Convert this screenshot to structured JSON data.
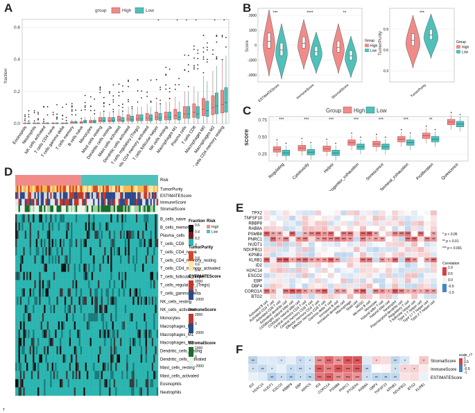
{
  "colors": {
    "high": "#e8797b",
    "low": "#36b3ad",
    "high_fill": "#f08b89",
    "low_fill": "#4fc1ba",
    "grid": "#e6e6e6"
  },
  "panel_letters": [
    "A",
    "B",
    "C",
    "D",
    "E",
    "F"
  ],
  "panelA": {
    "legend_title": "group",
    "legend_items": [
      "High",
      "Low"
    ],
    "ylabel": "fraction",
    "chart_data": {
      "type": "box",
      "ylim": [
        0,
        0.65
      ],
      "yticks": [
        "0.0",
        "0.2",
        "0.4",
        "0.6"
      ],
      "categories": [
        "Eosinophils",
        "Neutrophils",
        "NK cells activated",
        "T cells CD4 naive",
        "T cells gamma delta",
        "T cells memory",
        "B cells naive",
        "Monocytes",
        "Mast cells resting",
        "Dendritic cells resting",
        "Mast cells activated",
        "Dendritic cells activated",
        "T cells regulatory (Tregs)",
        "T cells CD4 memory activated",
        "T cells follicular helper",
        "NK cells resting",
        "Macrophages M1",
        "Plasma cells",
        "T cells CD8",
        "Macrophages M0",
        "Macrophages M2",
        "T cells CD4 memory resting"
      ],
      "series": [
        {
          "name": "High",
          "medians": [
            0,
            0,
            0,
            0,
            0,
            0.005,
            0.005,
            0.01,
            0.02,
            0.02,
            0.025,
            0.03,
            0.03,
            0.035,
            0.04,
            0.04,
            0.05,
            0.06,
            0.07,
            0.09,
            0.1,
            0.12
          ]
        },
        {
          "name": "Low",
          "medians": [
            0,
            0,
            0,
            0,
            0,
            0.005,
            0.01,
            0.01,
            0.02,
            0.02,
            0.02,
            0.025,
            0.03,
            0.03,
            0.035,
            0.04,
            0.04,
            0.06,
            0.06,
            0.08,
            0.11,
            0.13
          ]
        }
      ],
      "sig_labels": [
        "*",
        "*",
        "*",
        "*",
        "*",
        "*"
      ]
    }
  },
  "panelB": {
    "legend_title": "Group",
    "legend_items": [
      "High",
      "Low"
    ],
    "left_ylabel": "Score",
    "right_ylabel": "TumorPurity",
    "left": {
      "categories": [
        "ESTIMATEScore",
        "ImmuneScore",
        "StromalScore"
      ],
      "sig": [
        "***",
        "****",
        "**"
      ],
      "yticks": [
        "2000",
        "1000",
        "0",
        "-1000",
        "-2000"
      ]
    },
    "right": {
      "categories": [
        "TumorPurity"
      ],
      "sig": [
        "***"
      ],
      "yticks": [
        "0.9",
        "0.6",
        "0.3"
      ]
    }
  },
  "panelC": {
    "legend_title": "Group",
    "legend_items": [
      "High",
      "Low"
    ],
    "ylabel": "score",
    "chart_data": {
      "type": "box",
      "categories": [
        "Regulating",
        "Cytotoxicity",
        "Helper",
        "Progenitor_exhaustion",
        "Senescence",
        "Terminal_exhaustion",
        "Proliferation",
        "Quiescence"
      ],
      "series": [
        {
          "name": "High",
          "medians": [
            0.32,
            0.34,
            0.33,
            0.42,
            0.4,
            0.47,
            0.52,
            0.72
          ]
        },
        {
          "name": "Low",
          "medians": [
            0.27,
            0.28,
            0.27,
            0.36,
            0.36,
            0.42,
            0.47,
            0.69
          ]
        }
      ],
      "ylim": [
        0.15,
        0.8
      ],
      "yticks": [
        "0.75",
        "0.50",
        "0.25"
      ],
      "sig": [
        "***",
        "***",
        "***",
        "***",
        "***",
        "***",
        "**",
        ""
      ]
    }
  },
  "panelD": {
    "annotations": [
      "Risk",
      "TumorPurity",
      "ESTIMATEScore",
      "ImmuneScore",
      "StromalScore"
    ],
    "rows": [
      "B_cells_naive",
      "B_cells_memory",
      "Plasma_cells",
      "T_cells_CD8",
      "T_cells_CD4_naive",
      "T_cells_CD4_memory_resting",
      "T_cells_CD4_memory_activated",
      "T_cells_follicular_helper",
      "T_cells_regulatory_(Tregs)",
      "T_cells_gamma_delta",
      "NK_cells_resting",
      "NK_cells_activated",
      "Monocytes",
      "Macrophages_M0",
      "Macrophages_M1",
      "Macrophages_M2",
      "Dendritic_cells_resting",
      "Dendritic_cells_activated",
      "Mast_cells_resting",
      "Mast_cells_activated",
      "Eosinophils",
      "Neutrophils"
    ],
    "legends": {
      "fraction": {
        "title": "Fraction",
        "ticks": [
          "0.6",
          "0.4",
          "0.2",
          "0"
        ]
      },
      "risk": {
        "title": "Risk",
        "items": [
          "High",
          "Low"
        ]
      },
      "tumorpurity": {
        "title": "TumorPurity",
        "ticks": [
          "1",
          "0.8",
          "0.6",
          "0.4"
        ]
      },
      "estimate": {
        "title": "ESTIMATEScore",
        "ticks": [
          "2000",
          "0",
          "-2000"
        ]
      },
      "immune": {
        "title": "ImmuneScore",
        "ticks": [
          "2000",
          "0",
          "-2000"
        ]
      },
      "stromal": {
        "title": "StromalScore",
        "ticks": [
          "1000",
          "0",
          "-2000"
        ]
      }
    },
    "footnote": "T"
  },
  "panelE": {
    "rows": [
      "TPX2",
      "TNFSF10",
      "RBBP8",
      "RAB8A",
      "PSMB8",
      "PNRC1",
      "NUDT1",
      "NDUFB11",
      "KPNB1",
      "KLRB1",
      "ID2",
      "H2AC14",
      "ESCO2",
      "EBP",
      "DBF4",
      "CORO1A",
      "BTG2"
    ],
    "cols": [
      "Activated B cell",
      "Activated CD4 T cell",
      "Activated CD8 T cell",
      "Activated dendritic cell",
      "CD56bright natural killer cell",
      "CD56dim natural killer cell",
      "Central memory CD4 T cell",
      "Central memory CD8 T cell",
      "Effector memory CD4 T cell",
      "Effector memory CD8 T cell",
      "Gamma delta T cell",
      "Immature B cell",
      "Immature dendritic cell",
      "Macrophage",
      "Mast cell",
      "MDSC",
      "Memory B cell",
      "Monocyte",
      "Natural killer T cell",
      "Natural killer cell",
      "Neutrophil",
      "Plasmacytoid dendritic cell",
      "Regulatory T cell",
      "T follicular helper cell",
      "Type 1 T helper cell",
      "Type 17 T helper cell",
      "Type 2 T helper cell"
    ],
    "pnotes": [
      "* p < 0.05",
      "** p < 0.01",
      "*** p < 0.001"
    ],
    "colorbar_title": "Correlation",
    "colorbar_ticks": [
      "1.0",
      "0.5",
      "0.0",
      "-0.5",
      "-1.0"
    ]
  },
  "panelF": {
    "rows": [
      "StromalScore",
      "ImmuneScore",
      "ESTIMATEScore"
    ],
    "cols": [
      "ID2",
      "H2AC14",
      "NUDT1",
      "ESCO2",
      "RBBP8",
      "EBP",
      "ARPC5",
      "ID3",
      "CORO1A",
      "PSMB8",
      "PNRC1",
      "PTGER4",
      "RAB8A",
      "GBP4",
      "TNFSF10",
      "KPNB1",
      "NDUFB11",
      "BTG2",
      "KLRB1"
    ],
    "colorbar_title": "scale_r?",
    "colorbar_ticks": [
      "1",
      "0.5",
      "0",
      "-0.5",
      "-1"
    ]
  }
}
